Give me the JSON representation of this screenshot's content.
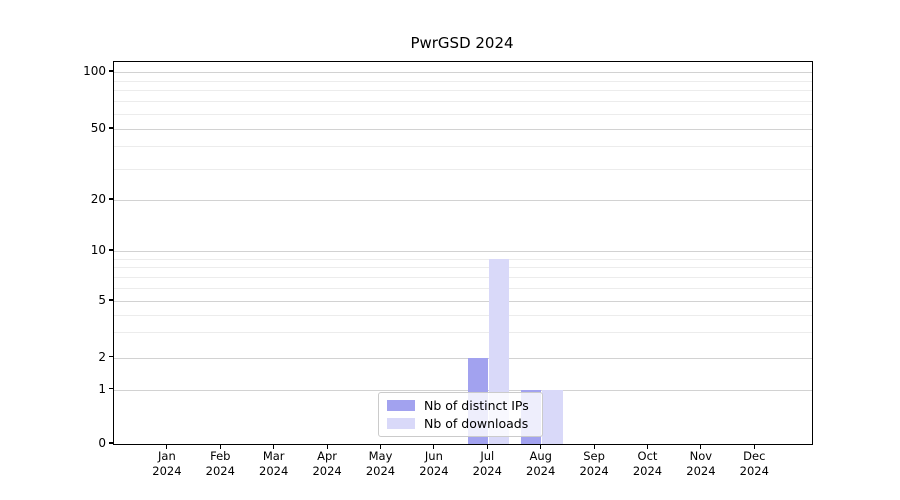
{
  "chart_data": {
    "type": "bar",
    "title": "PwrGSD 2024",
    "xlabel": "",
    "ylabel": "",
    "year_label": "2024",
    "months": [
      "Jan",
      "Feb",
      "Mar",
      "Apr",
      "May",
      "Jun",
      "Jul",
      "Aug",
      "Sep",
      "Oct",
      "Nov",
      "Dec"
    ],
    "categories": [
      "Jan 2024",
      "Feb 2024",
      "Mar 2024",
      "Apr 2024",
      "May 2024",
      "Jun 2024",
      "Jul 2024",
      "Aug 2024",
      "Sep 2024",
      "Oct 2024",
      "Nov 2024",
      "Dec 2024"
    ],
    "series": [
      {
        "name": "Nb of distinct IPs",
        "color": "#a2a2ef",
        "values": [
          0,
          0,
          0,
          0,
          0,
          0,
          2,
          1,
          0,
          0,
          0,
          0
        ]
      },
      {
        "name": "Nb of downloads",
        "color": "#d9d9f9",
        "values": [
          0,
          0,
          0,
          0,
          0,
          0,
          9,
          1,
          0,
          0,
          0,
          0
        ]
      }
    ],
    "yaxis": {
      "scale": "symlog",
      "ticks_major": [
        0,
        1,
        2,
        5,
        10,
        20,
        50,
        100
      ],
      "ticks_minor": [
        3,
        4,
        6,
        7,
        8,
        9,
        30,
        40,
        60,
        70,
        80,
        90
      ],
      "range": [
        0,
        110
      ]
    },
    "grid": "horizontal-only",
    "legend_position": "lower center",
    "colors": {
      "major_grid": "#d2d2d2",
      "minor_grid": "#ececec",
      "spine": "#000000",
      "background": "#ffffff"
    }
  }
}
